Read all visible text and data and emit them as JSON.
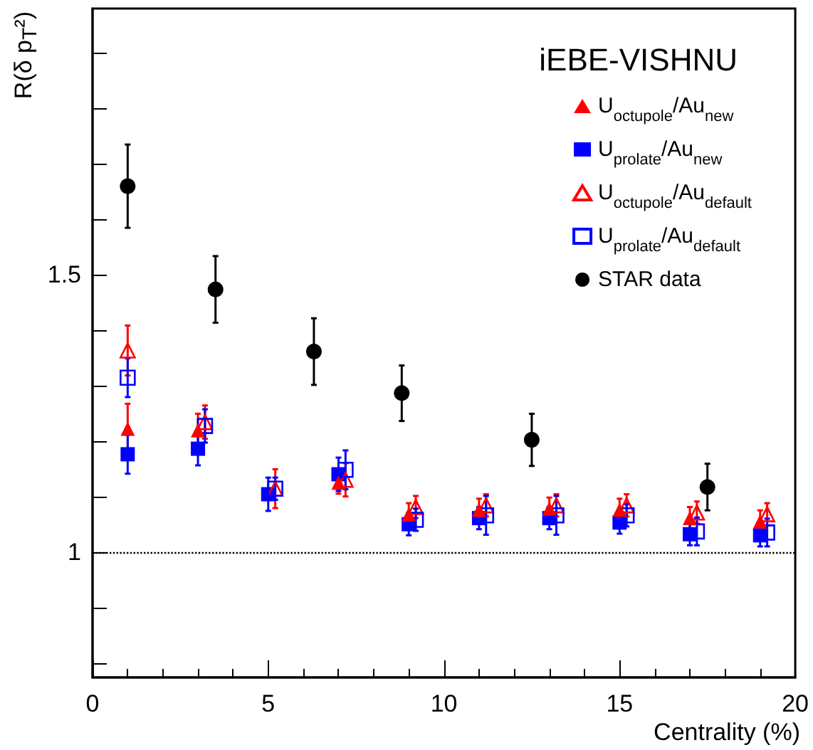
{
  "chart_data": {
    "type": "scatter",
    "xlabel": "Centrality (%)",
    "ylabel": "R(δ p$_{T}$²)",
    "legend_title": "iEBE-VISHNU",
    "legend": "top right",
    "grid": false,
    "xlim": [
      0,
      20
    ],
    "xticks": [
      0,
      5,
      10,
      15,
      20
    ],
    "ylim": [
      0.775,
      1.98
    ],
    "yticks": [
      {
        "value": 0.8,
        "label": null
      },
      {
        "value": 0.9,
        "label": null
      },
      1,
      {
        "value": 1.1,
        "label": null
      },
      {
        "value": 1.2,
        "label": null
      },
      {
        "value": 1.3,
        "label": null
      },
      {
        "value": 1.4,
        "label": null
      },
      1.5,
      {
        "value": 1.6,
        "label": null
      },
      {
        "value": 1.7,
        "label": null
      },
      {
        "value": 1.8,
        "label": null
      },
      {
        "value": 1.9,
        "label": null
      }
    ],
    "ref_lines": [
      {
        "axis": "y",
        "value": 1,
        "label": null,
        "color": "#000000",
        "line_style": "dotted"
      }
    ],
    "series": [
      {
        "name": "U$_{octupole}$/Au$_{new}$",
        "color": "#ff0000",
        "marker": "triangle",
        "x": [
          1,
          3,
          5,
          7,
          9,
          11,
          13,
          15,
          17,
          19
        ],
        "values": [
          1.223,
          1.22,
          null,
          1.126,
          1.069,
          1.077,
          1.079,
          1.077,
          1.062,
          1.056
        ],
        "errors": [
          0.045,
          0.03,
          null,
          0.02,
          0.02,
          0.02,
          0.02,
          0.02,
          0.02,
          0.02
        ]
      },
      {
        "name": "U$_{prolate}$/Au$_{new}$",
        "color": "#0000ff",
        "marker": "square",
        "x": [
          1,
          3,
          5,
          7,
          9,
          11,
          13,
          15,
          17,
          19
        ],
        "values": [
          1.177,
          1.187,
          1.105,
          1.141,
          1.051,
          1.062,
          1.062,
          1.054,
          1.033,
          1.031
        ],
        "errors": [
          0.035,
          0.03,
          0.03,
          0.03,
          0.02,
          0.02,
          0.02,
          0.02,
          0.02,
          0.02
        ]
      },
      {
        "name": "U$_{octupole}$/Au$_{default}$",
        "color": "#ff0000",
        "marker": "triangle-open",
        "x": [
          1,
          3.2,
          5.2,
          7.2,
          9.2,
          11.2,
          13.2,
          15.2,
          17.2,
          19.2
        ],
        "values": [
          1.364,
          1.235,
          1.115,
          1.131,
          1.082,
          1.085,
          1.085,
          1.085,
          1.072,
          1.069
        ],
        "errors": [
          0.045,
          0.03,
          0.035,
          0.03,
          0.02,
          0.02,
          0.02,
          0.02,
          0.02,
          0.02
        ]
      },
      {
        "name": "U$_{prolate}$/Au$_{default}$",
        "color": "#0000ff",
        "marker": "square-open",
        "x": [
          1,
          3.2,
          5.2,
          7.2,
          9.2,
          11.2,
          13.2,
          15.2,
          17.2,
          19.2
        ],
        "values": [
          1.315,
          1.228,
          1.115,
          1.149,
          1.059,
          1.067,
          1.067,
          1.067,
          1.038,
          1.036
        ],
        "errors": [
          0.035,
          0.03,
          0.02,
          0.035,
          0.02,
          0.035,
          0.035,
          0.02,
          0.025,
          0.025
        ]
      },
      {
        "name": "STAR data",
        "color": "#000000",
        "marker": "circle",
        "x": [
          1,
          3.5,
          6.3,
          8.8,
          12.5,
          17.5
        ],
        "values": [
          1.66,
          1.474,
          1.362,
          1.287,
          1.203,
          1.118
        ],
        "errors": [
          0.075,
          0.06,
          0.06,
          0.05,
          0.047,
          0.042
        ]
      }
    ]
  }
}
